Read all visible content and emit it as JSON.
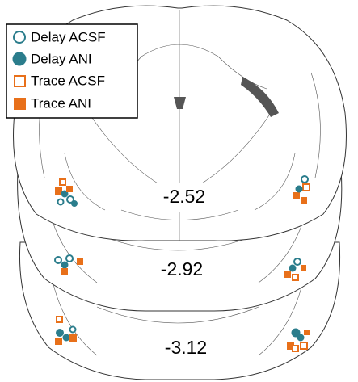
{
  "legend": [
    {
      "label": "Delay ACSF"
    },
    {
      "label": "Delay ANI"
    },
    {
      "label": "Trace ACSF"
    },
    {
      "label": "Trace ANI"
    }
  ],
  "sections": [
    {
      "label": "-2.52"
    },
    {
      "label": "-2.92"
    },
    {
      "label": "-3.12"
    }
  ]
}
